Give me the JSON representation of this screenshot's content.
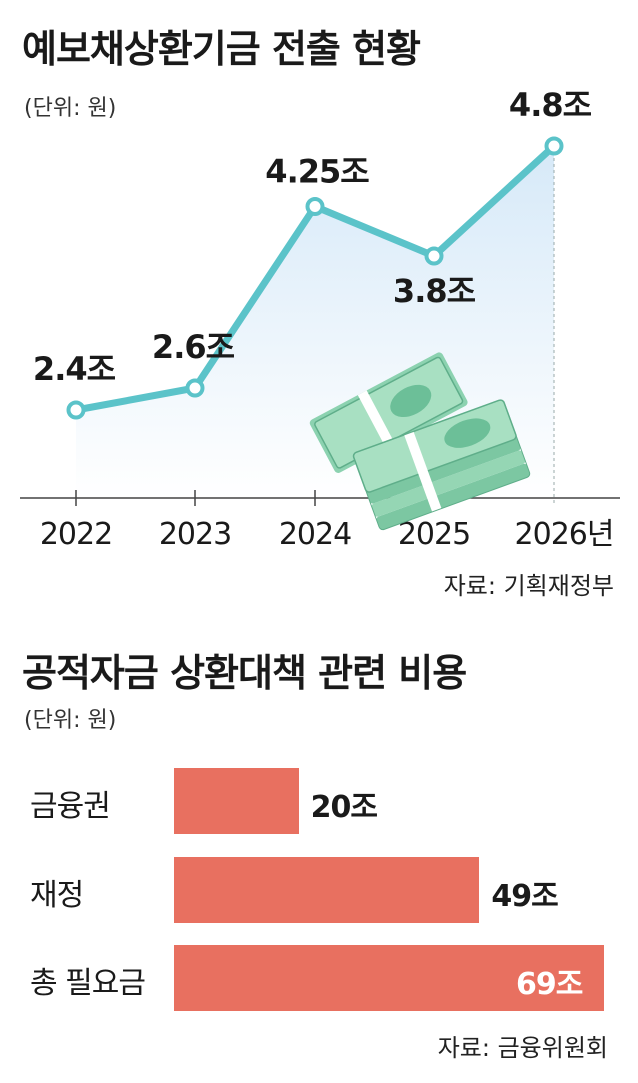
{
  "chart1": {
    "title": "예보채상환기금 전출 현황",
    "unit": "(단위: 원)",
    "source": "자료: 기획재정부",
    "chart_data": {
      "type": "line",
      "title": "예보채상환기금 전출 현황",
      "x": [
        "2022",
        "2023",
        "2024",
        "2025",
        "2026년"
      ],
      "values": [
        2.4,
        2.6,
        4.25,
        3.8,
        4.8
      ],
      "labels": [
        "2.4조",
        "2.6조",
        "4.25조",
        "3.8조",
        "4.8조"
      ],
      "ylim": [
        0,
        5.5
      ],
      "color": "#5bc3c9",
      "fill_color": "#d9ecf8"
    }
  },
  "chart2": {
    "title": "공적자금 상환대책 관련 비용",
    "unit": "(단위: 원)",
    "source": "자료: 금융위원회",
    "chart_data": {
      "type": "bar",
      "orientation": "horizontal",
      "title": "공적자금 상환대책 관련 비용",
      "categories": [
        "금융권",
        "재정",
        "총 필요금"
      ],
      "values": [
        20,
        49,
        69
      ],
      "labels": [
        "20조",
        "49조",
        "69조"
      ],
      "xlim": [
        0,
        69
      ],
      "color": "#e87060"
    }
  },
  "icons": [
    "money-bundle-icon"
  ]
}
